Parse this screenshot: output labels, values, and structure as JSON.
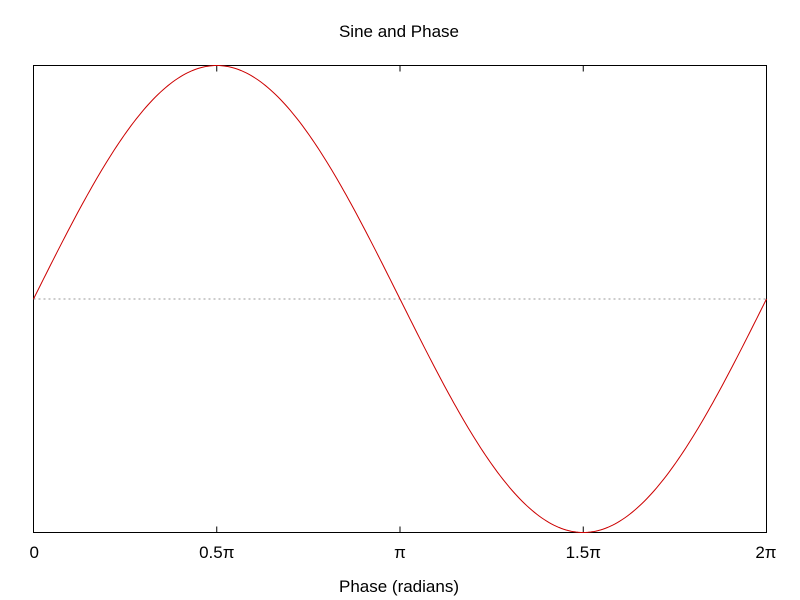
{
  "chart_data": {
    "type": "line",
    "title": "Sine and Phase",
    "xlabel": "Phase (radians)",
    "ylabel": "",
    "xlim": [
      0,
      6.283185307
    ],
    "ylim": [
      -1,
      1
    ],
    "x_ticks": [
      {
        "value": 0,
        "label": "0"
      },
      {
        "value": 1.570796327,
        "label": "0.5π"
      },
      {
        "value": 3.141592654,
        "label": "π"
      },
      {
        "value": 4.71238898,
        "label": "1.5π"
      },
      {
        "value": 6.283185307,
        "label": "2π"
      }
    ],
    "reference_line": {
      "y": 0,
      "style": "dotted",
      "color": "#999999"
    },
    "grid": false,
    "series": [
      {
        "function": "sin(x)",
        "color": "#cc0000",
        "x": [
          0,
          0.3927,
          0.7854,
          1.1781,
          1.5708,
          1.9635,
          2.3562,
          2.7489,
          3.1416,
          3.5343,
          3.927,
          4.3197,
          4.7124,
          5.1051,
          5.4978,
          5.8905,
          6.2832
        ],
        "y": [
          0,
          0.383,
          0.707,
          0.924,
          1,
          0.924,
          0.707,
          0.383,
          0,
          -0.383,
          -0.707,
          -0.924,
          -1,
          -0.924,
          -0.707,
          -0.383,
          0
        ]
      }
    ]
  }
}
